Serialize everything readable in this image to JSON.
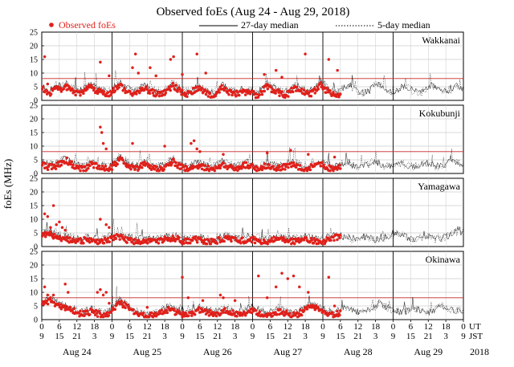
{
  "chart_data": {
    "type": "scatter",
    "title": "Observed foEs (Aug 24 - Aug 29, 2018)",
    "ylabel": "foEs (MHz)",
    "ylim": [
      0,
      25
    ],
    "yticks": [
      0,
      5,
      10,
      15,
      20,
      25
    ],
    "xlim_hours": [
      0,
      144
    ],
    "legend": {
      "observed": "Observed foEs",
      "median27": "27-day median",
      "median5": "5-day median"
    },
    "colors": {
      "observed": "#e0201b",
      "threshold": "#c62828",
      "median": "#000000"
    },
    "ut_label": "UT",
    "jst_label": "JST",
    "year_label": "2018",
    "ut_ticks": [
      "0",
      "6",
      "12",
      "18",
      "0",
      "6",
      "12",
      "18",
      "0",
      "6",
      "12",
      "18",
      "0",
      "6",
      "12",
      "18",
      "0",
      "6",
      "12",
      "18",
      "0",
      "6",
      "12",
      "18",
      "0"
    ],
    "jst_ticks": [
      "9",
      "15",
      "21",
      "3",
      "9",
      "15",
      "21",
      "3",
      "9",
      "15",
      "21",
      "3",
      "9",
      "15",
      "21",
      "3",
      "9",
      "15",
      "21",
      "3",
      "9",
      "15",
      "21",
      "3",
      "9"
    ],
    "day_labels": [
      "Aug 24",
      "Aug 25",
      "Aug 26",
      "Aug 27",
      "Aug 28",
      "Aug 29"
    ],
    "observation_end_hours": 102,
    "series": [
      {
        "name": "Wakkanai",
        "threshold": 8,
        "base": [
          5.5,
          4.2,
          3.8,
          4.5,
          5.8,
          5.0,
          6.0,
          4.8,
          4.0,
          3.6,
          3.8,
          5.2,
          5.8,
          4.6,
          4.1,
          3.4,
          3.2,
          4.0,
          5.5,
          6.5,
          5.0,
          4.4,
          3.6,
          3.2,
          4.5,
          5.4,
          4.8,
          4.0,
          3.4,
          3.0,
          3.6,
          5.0,
          6.4,
          5.2,
          4.0,
          3.4,
          3.2,
          4.6,
          5.4,
          4.6,
          3.8,
          3.0,
          2.8,
          3.6,
          5.8,
          4.4,
          3.8,
          3.4,
          3.6,
          4.4,
          4.0,
          3.6,
          3.0,
          3.2,
          4.6,
          6.2,
          5.0,
          4.4,
          3.6,
          3.0,
          3.4,
          4.6,
          5.4,
          4.8,
          3.8,
          3.2,
          3.8,
          5.0,
          6.6,
          5.2,
          4.2,
          3.6,
          3.0,
          3.4,
          4.6,
          5.2,
          4.4,
          3.6,
          3.0,
          2.8,
          3.4,
          5.8,
          6.2,
          4.8,
          3.8,
          3.2,
          2.8,
          3.4,
          5.2,
          4.6,
          4.0,
          3.4,
          3.0,
          3.2,
          4.2,
          5.6,
          4.4,
          3.8,
          3.4,
          3.6,
          4.2,
          5.6,
          4.0
        ],
        "spikes": [
          [
            1,
            16
          ],
          [
            2,
            6
          ],
          [
            20,
            14
          ],
          [
            23,
            9
          ],
          [
            31,
            12
          ],
          [
            32,
            17
          ],
          [
            33,
            10
          ],
          [
            37,
            12
          ],
          [
            39,
            9
          ],
          [
            44,
            15
          ],
          [
            45,
            16
          ],
          [
            48,
            9.5
          ],
          [
            53,
            17
          ],
          [
            56,
            10
          ],
          [
            76,
            9.5
          ],
          [
            80,
            11
          ],
          [
            82,
            8.5
          ],
          [
            90,
            17
          ],
          [
            98,
            15
          ],
          [
            101,
            11
          ]
        ]
      },
      {
        "name": "Kokubunji",
        "threshold": 8,
        "base": [
          4.2,
          3.6,
          3.4,
          3.2,
          4.0,
          5.2,
          5.8,
          4.6,
          3.8,
          3.2,
          2.6,
          3.0,
          4.4,
          4.0,
          3.4,
          3.0,
          2.8,
          3.2,
          4.8,
          6.2,
          5.0,
          4.0,
          3.2,
          2.6,
          3.8,
          4.4,
          3.8,
          3.0,
          2.6,
          2.8,
          3.4,
          4.6,
          5.4,
          4.2,
          3.4,
          2.8,
          2.6,
          3.4,
          4.0,
          3.6,
          3.0,
          2.6,
          2.8,
          3.4,
          4.4,
          3.8,
          3.2,
          2.6,
          3.0,
          3.6,
          4.4,
          3.6,
          2.8,
          2.4,
          3.4,
          4.2,
          3.6,
          3.0,
          2.8,
          3.2,
          3.8,
          4.6,
          3.8,
          3.0,
          2.4,
          2.8,
          3.6,
          4.0,
          4.4,
          3.6,
          3.0,
          2.6,
          2.8,
          3.4,
          4.2,
          3.6,
          3.0,
          2.6,
          2.4,
          2.8,
          3.6,
          4.4,
          4.0,
          3.2,
          2.6,
          2.4,
          2.8,
          3.8,
          3.4,
          3.0,
          2.6,
          2.6,
          3.0,
          3.6,
          4.0,
          3.4,
          2.8,
          2.6,
          3.0,
          3.6,
          5.0,
          4.2,
          3.4
        ],
        "spikes": [
          [
            20,
            17
          ],
          [
            20.5,
            15
          ],
          [
            21,
            11
          ],
          [
            22,
            9
          ],
          [
            31,
            11
          ],
          [
            42,
            10
          ],
          [
            51,
            11
          ],
          [
            52,
            12
          ],
          [
            53,
            9
          ],
          [
            54,
            8
          ],
          [
            62,
            7
          ],
          [
            77,
            7.5
          ],
          [
            85,
            8.5
          ],
          [
            91,
            7
          ],
          [
            100,
            6
          ]
        ]
      },
      {
        "name": "Yamagawa",
        "threshold": null,
        "base": [
          4.8,
          5.2,
          5.6,
          5.0,
          4.4,
          3.8,
          3.6,
          3.4,
          3.0,
          2.8,
          3.2,
          3.4,
          3.0,
          2.8,
          2.6,
          3.0,
          3.6,
          4.0,
          4.4,
          4.6,
          4.0,
          3.4,
          3.0,
          2.8,
          3.0,
          3.2,
          3.0,
          2.8,
          2.6,
          3.0,
          3.6,
          4.0,
          4.2,
          3.8,
          3.2,
          2.8,
          3.0,
          3.4,
          3.6,
          3.2,
          2.8,
          2.6,
          2.8,
          3.2,
          3.8,
          4.2,
          3.8,
          3.2,
          3.0,
          3.2,
          3.6,
          3.8,
          3.4,
          3.0,
          2.8,
          3.0,
          3.4,
          3.8,
          4.0,
          3.6,
          3.0,
          2.8,
          3.0,
          3.4,
          3.8,
          3.6,
          3.2,
          2.8,
          2.6,
          3.0,
          3.6,
          4.2,
          4.4,
          4.0,
          3.4,
          3.0,
          2.8,
          3.0,
          3.4,
          3.6,
          3.2,
          2.8,
          2.6,
          3.0,
          3.6,
          4.0,
          4.4,
          4.8,
          4.2,
          3.6,
          3.0,
          2.8,
          3.0,
          3.4,
          3.6,
          3.2,
          2.8,
          3.0,
          3.4,
          3.8,
          4.4,
          5.6,
          5.0
        ],
        "spikes": [
          [
            1,
            12
          ],
          [
            2,
            11
          ],
          [
            3,
            7
          ],
          [
            4,
            15
          ],
          [
            5,
            8
          ],
          [
            6,
            9
          ],
          [
            7,
            7
          ],
          [
            8,
            6
          ],
          [
            20,
            10
          ],
          [
            22,
            8
          ],
          [
            23,
            7
          ]
        ]
      },
      {
        "name": "Okinawa",
        "threshold": 8,
        "base": [
          6.5,
          7.2,
          8.0,
          7.0,
          6.2,
          5.4,
          5.0,
          4.6,
          4.2,
          3.4,
          3.0,
          3.4,
          4.0,
          3.6,
          3.0,
          2.6,
          3.0,
          4.2,
          6.0,
          7.2,
          6.4,
          5.2,
          4.0,
          3.2,
          3.0,
          2.6,
          2.2,
          2.6,
          3.0,
          3.4,
          4.0,
          4.6,
          4.2,
          3.6,
          3.0,
          2.6,
          2.8,
          3.6,
          4.4,
          4.8,
          4.0,
          3.4,
          3.0,
          3.2,
          3.8,
          4.2,
          3.6,
          3.0,
          2.6,
          3.0,
          3.8,
          4.6,
          4.2,
          3.4,
          3.0,
          2.6,
          3.0,
          3.6,
          4.0,
          3.6,
          3.0,
          2.6,
          2.8,
          3.4,
          4.2,
          5.2,
          5.8,
          5.0,
          4.2,
          3.4,
          3.0,
          2.8,
          3.2,
          3.8,
          4.4,
          4.0,
          3.4,
          3.0,
          2.6,
          3.0,
          3.8,
          4.6,
          5.2,
          5.6,
          4.8,
          4.0,
          3.4,
          3.0,
          2.8,
          3.2,
          3.8,
          4.2,
          3.6,
          3.0,
          2.8,
          3.2,
          3.8,
          4.4,
          4.8,
          4.2,
          3.6,
          3.0,
          3.4
        ],
        "spikes": [
          [
            1,
            12
          ],
          [
            2,
            9
          ],
          [
            3,
            8
          ],
          [
            4,
            9
          ],
          [
            8,
            13
          ],
          [
            9,
            10
          ],
          [
            19,
            10
          ],
          [
            20,
            11
          ],
          [
            21,
            9
          ],
          [
            22,
            10
          ],
          [
            23,
            6
          ],
          [
            36,
            4.5
          ],
          [
            48,
            15.5
          ],
          [
            50,
            8
          ],
          [
            55,
            7
          ],
          [
            61,
            9
          ],
          [
            62,
            8
          ],
          [
            66,
            7
          ],
          [
            74,
            16
          ],
          [
            77,
            8
          ],
          [
            80,
            12
          ],
          [
            82,
            17
          ],
          [
            84,
            15
          ],
          [
            86,
            16
          ],
          [
            88,
            12
          ],
          [
            91,
            10
          ],
          [
            98,
            15.5
          ],
          [
            100,
            5
          ]
        ]
      }
    ]
  }
}
